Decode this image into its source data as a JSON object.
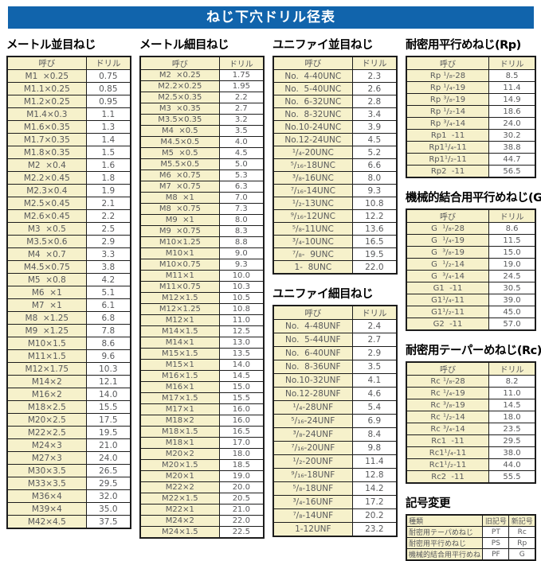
{
  "title": "ねじ下穴ドリル径表",
  "sections": {
    "metric_coarse": {
      "title": "メートル並目ねじ",
      "headers": [
        "呼び",
        "ドリル"
      ],
      "rows": [
        [
          "M1  ×0.25",
          "0.75"
        ],
        [
          "M1.1×0.25",
          "0.85"
        ],
        [
          "M1.2×0.25",
          "0.95"
        ],
        [
          "M1.4×0.3",
          "1.1"
        ],
        [
          "M1.6×0.35",
          "1.3"
        ],
        [
          "M1.7×0.35",
          "1.4"
        ],
        [
          "M1.8×0.35",
          "1.5"
        ],
        [
          "M2  ×0.4",
          "1.6"
        ],
        [
          "M2.2×0.45",
          "1.8"
        ],
        [
          "M2.3×0.4",
          "1.9"
        ],
        [
          "M2.5×0.45",
          "2.1"
        ],
        [
          "M2.6×0.45",
          "2.2"
        ],
        [
          "M3  ×0.5",
          "2.5"
        ],
        [
          "M3.5×0.6",
          "2.9"
        ],
        [
          "M4  ×0.7",
          "3.3"
        ],
        [
          "M4.5×0.75",
          "3.8"
        ],
        [
          "M5  ×0.8",
          "4.2"
        ],
        [
          "M6  ×1",
          "5.1"
        ],
        [
          "M7  ×1",
          "6.1"
        ],
        [
          "M8  ×1.25",
          "6.8"
        ],
        [
          "M9  ×1.25",
          "7.8"
        ],
        [
          "M10×1.5",
          "8.6"
        ],
        [
          "M11×1.5",
          "9.6"
        ],
        [
          "M12×1.75",
          "10.3"
        ],
        [
          "M14×2",
          "12.1"
        ],
        [
          "M16×2",
          "14.0"
        ],
        [
          "M18×2.5",
          "15.5"
        ],
        [
          "M20×2.5",
          "17.5"
        ],
        [
          "M22×2.5",
          "19.5"
        ],
        [
          "M24×3",
          "21.0"
        ],
        [
          "M27×3",
          "24.0"
        ],
        [
          "M30×3.5",
          "26.5"
        ],
        [
          "M33×3.5",
          "29.5"
        ],
        [
          "M36×4",
          "32.0"
        ],
        [
          "M39×4",
          "35.0"
        ],
        [
          "M42×4.5",
          "37.5"
        ]
      ]
    },
    "metric_fine": {
      "title": "メートル細目ねじ",
      "headers": [
        "呼び",
        "ドリル"
      ],
      "rows": [
        [
          "M2  ×0.25",
          "1.75"
        ],
        [
          "M2.2×0.25",
          "1.95"
        ],
        [
          "M2.5×0.35",
          "2.2"
        ],
        [
          "M3  ×0.35",
          "2.7"
        ],
        [
          "M3.5×0.35",
          "3.2"
        ],
        [
          "M4  ×0.5",
          "3.5"
        ],
        [
          "M4.5×0.5",
          "4.0"
        ],
        [
          "M5  ×0.5",
          "4.5"
        ],
        [
          "M5.5×0.5",
          "5.0"
        ],
        [
          "M6  ×0.75",
          "5.3"
        ],
        [
          "M7  ×0.75",
          "6.3"
        ],
        [
          "M8  ×1",
          "7.0"
        ],
        [
          "M8  ×0.75",
          "7.3"
        ],
        [
          "M9  ×1",
          "8.0"
        ],
        [
          "M9  ×0.75",
          "8.3"
        ],
        [
          "M10×1.25",
          "8.8"
        ],
        [
          "M10×1",
          "9.0"
        ],
        [
          "M10×0.75",
          "9.3"
        ],
        [
          "M11×1",
          "10.0"
        ],
        [
          "M11×0.75",
          "10.3"
        ],
        [
          "M12×1.5",
          "10.5"
        ],
        [
          "M12×1.25",
          "10.8"
        ],
        [
          "M12×1",
          "11.0"
        ],
        [
          "M14×1.5",
          "12.5"
        ],
        [
          "M14×1",
          "13.0"
        ],
        [
          "M15×1.5",
          "13.5"
        ],
        [
          "M15×1",
          "14.0"
        ],
        [
          "M16×1.5",
          "14.5"
        ],
        [
          "M16×1",
          "15.0"
        ],
        [
          "M17×1.5",
          "15.5"
        ],
        [
          "M17×1",
          "16.0"
        ],
        [
          "M18×2",
          "16.0"
        ],
        [
          "M18×1.5",
          "16.5"
        ],
        [
          "M18×1",
          "17.0"
        ],
        [
          "M20×2",
          "18.0"
        ],
        [
          "M20×1.5",
          "18.5"
        ],
        [
          "M20×1",
          "19.0"
        ],
        [
          "M22×2",
          "20.0"
        ],
        [
          "M22×1.5",
          "20.5"
        ],
        [
          "M22×1",
          "21.0"
        ],
        [
          "M24×2",
          "22.0"
        ],
        [
          "M24×1.5",
          "22.5"
        ]
      ]
    },
    "unified_coarse": {
      "title": "ユニファイ並目ねじ",
      "headers": [
        "呼び",
        "ドリル"
      ],
      "rows": [
        [
          "No.  4-40UNC",
          "2.3"
        ],
        [
          "No.  5-40UNC",
          "2.6"
        ],
        [
          "No.  6-32UNC",
          "2.8"
        ],
        [
          "No.  8-32UNC",
          "3.4"
        ],
        [
          "No.10-24UNC",
          "3.9"
        ],
        [
          "No.12-24UNC",
          "4.5"
        ],
        [
          "¹/₄-20UNC",
          "5.2"
        ],
        [
          "⁵/₁₆-18UNC",
          "6.6"
        ],
        [
          "³/₈-16UNC",
          "8.0"
        ],
        [
          "⁷/₁₆-14UNC",
          "9.3"
        ],
        [
          "¹/₂-13UNC",
          "10.8"
        ],
        [
          "⁹/₁₆-12UNC",
          "12.2"
        ],
        [
          "⁵/₈-11UNC",
          "13.6"
        ],
        [
          "³/₄-10UNC",
          "16.5"
        ],
        [
          "⁷/₈-  9UNC",
          "19.5"
        ],
        [
          "1-  8UNC",
          "22.0"
        ]
      ]
    },
    "unified_fine": {
      "title": "ユニファイ細目ねじ",
      "headers": [
        "呼び",
        "ドリル"
      ],
      "rows": [
        [
          "No.  4-48UNF",
          "2.4"
        ],
        [
          "No.  5-44UNF",
          "2.7"
        ],
        [
          "No.  6-40UNF",
          "2.9"
        ],
        [
          "No.  8-36UNF",
          "3.5"
        ],
        [
          "No.10-32UNF",
          "4.1"
        ],
        [
          "No.12-28UNF",
          "4.6"
        ],
        [
          "¹/₄-28UNF",
          "5.4"
        ],
        [
          "⁵/₁₆-24UNF",
          "6.9"
        ],
        [
          "³/₈-24UNF",
          "8.4"
        ],
        [
          "⁷/₁₆-20UNF",
          "9.8"
        ],
        [
          "¹/₂-20UNF",
          "11.4"
        ],
        [
          "⁹/₁₆-18UNF",
          "12.8"
        ],
        [
          "⁵/₈-18UNF",
          "14.2"
        ],
        [
          "³/₄-16UNF",
          "17.2"
        ],
        [
          "⁷/₈-14UNF",
          "20.2"
        ],
        [
          "1-12UNF",
          "23.2"
        ]
      ]
    },
    "rp": {
      "title": "耐密用平行めねじ(Rp)",
      "headers": [
        "呼び",
        "ドリル"
      ],
      "rows": [
        [
          "Rp ¹/₈-28",
          "8.5"
        ],
        [
          "Rp ¹/₄-19",
          "11.4"
        ],
        [
          "Rp ³/₈-19",
          "14.9"
        ],
        [
          "Rp ¹/₂-14",
          "18.6"
        ],
        [
          "Rp ³/₄-14",
          "24.0"
        ],
        [
          "Rp1  -11",
          "30.2"
        ],
        [
          "Rp1¹/₄-11",
          "38.8"
        ],
        [
          "Rp1¹/₂-11",
          "44.7"
        ],
        [
          "Rp2  -11",
          "56.5"
        ]
      ]
    },
    "g": {
      "title": "機械的結合用平行めねじ(G)",
      "headers": [
        "呼び",
        "ドリル"
      ],
      "rows": [
        [
          "G  ¹/₈-28",
          "8.6"
        ],
        [
          "G  ¹/₄-19",
          "11.5"
        ],
        [
          "G  ³/₈-19",
          "15.0"
        ],
        [
          "G  ¹/₂-14",
          "19.0"
        ],
        [
          "G  ³/₄-14",
          "24.5"
        ],
        [
          "G1  -11",
          "30.5"
        ],
        [
          "G1¹/₄-11",
          "39.0"
        ],
        [
          "G1¹/₂-11",
          "45.0"
        ],
        [
          "G2  -11",
          "57.0"
        ]
      ]
    },
    "rc": {
      "title": "耐密用テーパーめねじ(Rc)",
      "headers": [
        "呼び",
        "ドリル"
      ],
      "rows": [
        [
          "Rc ¹/₈-28",
          "8.2"
        ],
        [
          "Rc ¹/₄-19",
          "11.0"
        ],
        [
          "Rc ³/₈-19",
          "14.5"
        ],
        [
          "Rc ¹/₂-14",
          "18.0"
        ],
        [
          "Rc ³/₄-14",
          "23.5"
        ],
        [
          "Rc1  -11",
          "29.5"
        ],
        [
          "Rc1¹/₄-11",
          "38.0"
        ],
        [
          "Rc1¹/₂-11",
          "44.0"
        ],
        [
          "Rc2  -11",
          "55.5"
        ]
      ]
    },
    "symbol_change": {
      "title": "記号変更",
      "headers": [
        "種類",
        "旧記号",
        "新記号"
      ],
      "rows": [
        [
          "耐密用テーパめねじ",
          "PT",
          "Rc"
        ],
        [
          "耐密用平行めねじ",
          "PS",
          "Rp"
        ],
        [
          "機械的結合用平行めねじ",
          "PF",
          "G"
        ]
      ]
    }
  },
  "colors": {
    "title_bar": "#1164ac",
    "cell_yellow": "#f6f1cb",
    "border": "#1c1c1c",
    "text_gray": "#58595b"
  }
}
